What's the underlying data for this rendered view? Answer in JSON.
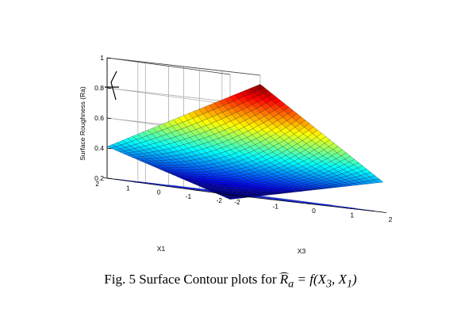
{
  "chart_data": {
    "type": "surface",
    "zlabel": "Surface Roughness (Ra)",
    "xlabel": "X3",
    "ylabel": "X1",
    "x_ticks": [
      "-2",
      "-1",
      "0",
      "1",
      "2"
    ],
    "y_ticks": [
      "-2",
      "-1",
      "0",
      "1",
      "2"
    ],
    "z_ticks": [
      "0.2",
      "0.4",
      "0.6",
      "0.8",
      "1"
    ],
    "xlim": [
      -2,
      2
    ],
    "ylim": [
      -2,
      2
    ],
    "zlim": [
      0.2,
      1
    ],
    "grid": true,
    "colormap": "jet",
    "contour_projection": true,
    "corner_values": [
      {
        "x": -2,
        "y": 2,
        "z": 0.41
      },
      {
        "x": 2,
        "y": 2,
        "z": 0.94
      },
      {
        "x": 2,
        "y": -2,
        "z": 0.4
      },
      {
        "x": -2,
        "y": -2,
        "z": 0.17
      }
    ],
    "center_value": {
      "x": 0,
      "y": 0,
      "z": 0.36
    }
  },
  "caption": {
    "prefix": "Fig. 5  Surface Contour plots for ",
    "symbol": "R",
    "subscript": "a",
    "equals": " = f(X",
    "arg1_sub": "3",
    "sep": ", X",
    "arg2_sub": "1",
    "close": ")"
  },
  "colors": {
    "grid": "#b0b0b0",
    "contour": "#1a2bd8",
    "axes": "#000000"
  }
}
